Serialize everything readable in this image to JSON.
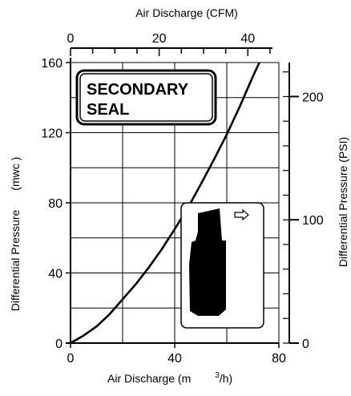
{
  "chart_data": {
    "type": "line",
    "x_label": "Air Discharge (m³/h)",
    "x_unit_base": "Air Discharge (m",
    "x_unit_sup": "3",
    "x_unit_tail": "/h)",
    "x_top_label": "Air Discharge (CFM)",
    "y_left_label_main": "Differential Pressure",
    "y_left_label_unit": "(mwc )",
    "y_right_label": "Differential Pressure (PSI)",
    "xlim": [
      0,
      80
    ],
    "ylim": [
      0,
      160
    ],
    "x_top_lim": [
      0,
      47
    ],
    "y_right_lim": [
      0,
      227.6
    ],
    "x_ticks": [
      "0",
      "40",
      "80"
    ],
    "y_ticks": [
      "0",
      "40",
      "80",
      "120",
      "160"
    ],
    "x_top_ticks": [
      "0",
      "20",
      "40"
    ],
    "y_right_ticks": [
      "0",
      "100",
      "200"
    ],
    "grid": true,
    "badge_text": [
      "SECONDARY",
      "SEAL"
    ],
    "series": [
      {
        "x": [
          0,
          5,
          10,
          15,
          20,
          25,
          30,
          35,
          40,
          45,
          50,
          55,
          60,
          65,
          70,
          72.5
        ],
        "y": [
          0,
          4.3,
          9.5,
          16.5,
          25,
          33.5,
          43,
          53.5,
          65,
          77,
          90.5,
          104.5,
          119,
          135,
          152,
          160
        ]
      }
    ],
    "colors": {
      "line": "#000000",
      "grid": "#000000",
      "background": "#ffffff",
      "icon": "#000000"
    }
  }
}
